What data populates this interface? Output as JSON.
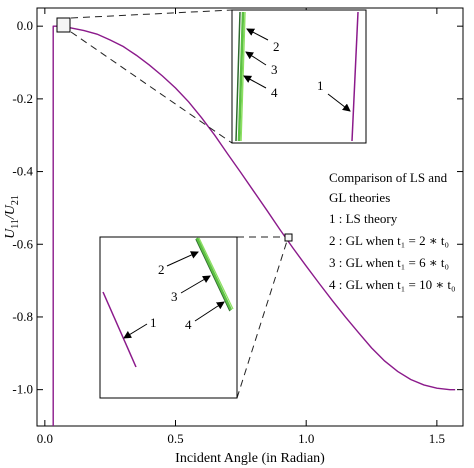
{
  "chart_data": {
    "type": "line",
    "xlabel": "Incident Angle (in Radian)",
    "ylabel_main": "U",
    "ylabel_num_sub": "11",
    "ylabel_sep": "/U",
    "ylabel_den_sub": "21",
    "xlim": [
      -0.03,
      1.6
    ],
    "ylim": [
      -1.1,
      0.05
    ],
    "xticks": [
      0.0,
      0.5,
      1.0,
      1.5
    ],
    "xtick_labels": [
      "0.0",
      "0.5",
      "1.0",
      "1.5"
    ],
    "yticks": [
      0.0,
      -0.2,
      -0.4,
      -0.6,
      -0.8,
      -1.0
    ],
    "ytick_labels": [
      "0.0",
      "-0.2",
      "-0.4",
      "-0.6",
      "-0.8",
      "-1.0"
    ],
    "series": [
      {
        "color": "#8b1a8b",
        "x": [
          0.03,
          0.05,
          0.1,
          0.15,
          0.2,
          0.25,
          0.3,
          0.35,
          0.4,
          0.45,
          0.5,
          0.55,
          0.6,
          0.65,
          0.7,
          0.75,
          0.8,
          0.85,
          0.9,
          0.95,
          1.0,
          1.05,
          1.1,
          1.15,
          1.2,
          1.25,
          1.3,
          1.35,
          1.4,
          1.45,
          1.5,
          1.55,
          1.57
        ],
        "y": [
          0.0,
          0.0,
          -0.005,
          -0.012,
          -0.022,
          -0.038,
          -0.056,
          -0.08,
          -0.107,
          -0.137,
          -0.17,
          -0.208,
          -0.252,
          -0.3,
          -0.352,
          -0.403,
          -0.455,
          -0.507,
          -0.56,
          -0.611,
          -0.66,
          -0.708,
          -0.755,
          -0.8,
          -0.843,
          -0.885,
          -0.921,
          -0.95,
          -0.972,
          -0.987,
          -0.996,
          -1.0,
          -1.0
        ]
      },
      {
        "color": "#8b1a8b",
        "x": [
          0.032,
          0.032
        ],
        "y": [
          0.0,
          -1.1
        ]
      }
    ],
    "legend": {
      "title_line1": "Comparison of LS and",
      "title_line2": "GL theories",
      "items": [
        "1 : LS theory",
        "2 : GL when t₁ = 2 ∗ t₀",
        "3 : GL when t₁ = 6 ∗ t₀",
        "4 : GL when t₁ = 10 ∗ t₀"
      ]
    },
    "zoom_marker_points": [
      {
        "x": 0.04,
        "y": 0.0
      },
      {
        "x": 0.89,
        "y": -0.59
      }
    ],
    "inset_callouts": {
      "top": [
        "2",
        "3",
        "4",
        "1"
      ],
      "bottom": [
        "2",
        "3",
        "4",
        "1"
      ]
    },
    "colors": {
      "ls": "#8b1a8b",
      "gl_green": "#5cc043",
      "gl_dark": "#2f6a2f",
      "frame": "#000000",
      "dash": "#222222"
    }
  }
}
